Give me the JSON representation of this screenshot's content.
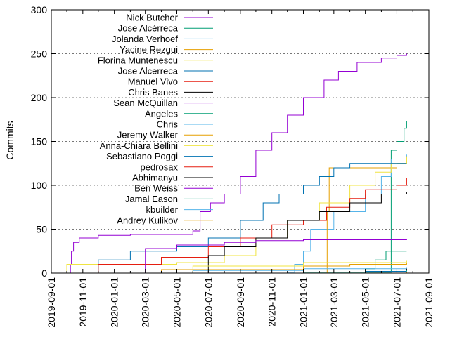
{
  "chart_data": {
    "type": "line",
    "title": "",
    "xlabel": "",
    "ylabel": "Commits",
    "xlim": [
      "2019-09-01",
      "2021-09-01"
    ],
    "ylim": [
      0,
      300
    ],
    "xticks": [
      "2019-09-01",
      "2019-11-01",
      "2020-01-01",
      "2020-03-01",
      "2020-05-01",
      "2020-07-01",
      "2020-09-01",
      "2020-11-01",
      "2021-01-01",
      "2021-03-01",
      "2021-05-01",
      "2021-07-01",
      "2021-09-01"
    ],
    "yticks": [
      0,
      50,
      100,
      150,
      200,
      250,
      300
    ],
    "grid": true,
    "legend_position": "top-left",
    "series": [
      {
        "name": "Nick Butcher",
        "color": "#9400d3",
        "points": [
          [
            "2019-09-15",
            0
          ],
          [
            "2019-10-08",
            10
          ],
          [
            "2019-10-10",
            25
          ],
          [
            "2019-10-14",
            35
          ],
          [
            "2019-10-25",
            40
          ],
          [
            "2019-12-01",
            43
          ],
          [
            "2020-02-01",
            44
          ],
          [
            "2020-06-01",
            48
          ],
          [
            "2020-06-15",
            70
          ],
          [
            "2020-07-05",
            80
          ],
          [
            "2020-08-01",
            90
          ],
          [
            "2020-09-01",
            110
          ],
          [
            "2020-10-01",
            140
          ],
          [
            "2020-11-01",
            160
          ],
          [
            "2020-12-01",
            180
          ],
          [
            "2021-01-01",
            200
          ],
          [
            "2021-02-10",
            220
          ],
          [
            "2021-03-10",
            230
          ],
          [
            "2021-04-15",
            240
          ],
          [
            "2021-06-01",
            245
          ],
          [
            "2021-07-01",
            248
          ],
          [
            "2021-07-20",
            250
          ]
        ]
      },
      {
        "name": "Jose Alcérreca",
        "color": "#009e73",
        "points": [
          [
            "2020-01-01",
            0
          ],
          [
            "2021-01-01",
            1
          ],
          [
            "2021-06-20",
            140
          ],
          [
            "2021-07-01",
            150
          ],
          [
            "2021-07-15",
            165
          ],
          [
            "2021-07-20",
            173
          ]
        ]
      },
      {
        "name": "Jolanda Verhoef",
        "color": "#56b4e9",
        "points": [
          [
            "2020-09-01",
            0
          ],
          [
            "2020-12-01",
            1
          ],
          [
            "2020-12-15",
            10
          ],
          [
            "2021-01-01",
            25
          ],
          [
            "2021-01-15",
            50
          ],
          [
            "2021-03-01",
            70
          ],
          [
            "2021-05-01",
            90
          ],
          [
            "2021-06-01",
            110
          ],
          [
            "2021-06-20",
            130
          ],
          [
            "2021-07-20",
            135
          ]
        ]
      },
      {
        "name": "Yacine Rezgui",
        "color": "#e69f00",
        "points": [
          [
            "2020-06-01",
            0
          ],
          [
            "2021-02-15",
            0
          ],
          [
            "2021-02-16",
            70
          ],
          [
            "2021-02-20",
            120
          ],
          [
            "2021-05-01",
            120
          ],
          [
            "2021-07-01",
            125
          ],
          [
            "2021-07-20",
            133
          ]
        ]
      },
      {
        "name": "Florina Muntenescu",
        "color": "#f0e442",
        "points": [
          [
            "2019-09-20",
            0
          ],
          [
            "2019-10-01",
            10
          ],
          [
            "2020-05-01",
            12
          ],
          [
            "2020-08-01",
            20
          ],
          [
            "2020-10-01",
            40
          ],
          [
            "2020-12-01",
            60
          ],
          [
            "2021-02-01",
            80
          ],
          [
            "2021-04-01",
            100
          ],
          [
            "2021-05-20",
            115
          ],
          [
            "2021-06-20",
            125
          ],
          [
            "2021-07-20",
            133
          ]
        ]
      },
      {
        "name": "Jose Alcerreca",
        "color": "#0072b2",
        "points": [
          [
            "2019-11-01",
            0
          ],
          [
            "2019-12-01",
            15
          ],
          [
            "2020-02-01",
            25
          ],
          [
            "2020-05-01",
            30
          ],
          [
            "2020-07-01",
            40
          ],
          [
            "2020-09-01",
            60
          ],
          [
            "2020-10-15",
            80
          ],
          [
            "2020-11-15",
            90
          ],
          [
            "2021-01-01",
            100
          ],
          [
            "2021-02-01",
            110
          ],
          [
            "2021-03-01",
            120
          ],
          [
            "2021-04-01",
            125
          ],
          [
            "2021-07-20",
            125
          ]
        ]
      },
      {
        "name": "Manuel Vivo",
        "color": "#e51e10",
        "points": [
          [
            "2019-09-01",
            0
          ],
          [
            "2019-12-01",
            10
          ],
          [
            "2020-04-01",
            18
          ],
          [
            "2020-07-01",
            30
          ],
          [
            "2020-09-01",
            40
          ],
          [
            "2020-11-01",
            55
          ],
          [
            "2021-01-01",
            60
          ],
          [
            "2021-02-15",
            75
          ],
          [
            "2021-04-01",
            85
          ],
          [
            "2021-05-01",
            95
          ],
          [
            "2021-07-01",
            100
          ],
          [
            "2021-07-20",
            108
          ]
        ]
      },
      {
        "name": "Chris Banes",
        "color": "#000000",
        "points": [
          [
            "2020-06-15",
            0
          ],
          [
            "2020-07-01",
            20
          ],
          [
            "2020-08-01",
            30
          ],
          [
            "2020-10-01",
            40
          ],
          [
            "2020-12-01",
            60
          ],
          [
            "2021-02-01",
            70
          ],
          [
            "2021-04-01",
            80
          ],
          [
            "2021-06-01",
            90
          ],
          [
            "2021-07-20",
            92
          ]
        ]
      },
      {
        "name": "Sean McQuillan",
        "color": "#9400d3",
        "points": [
          [
            "2020-02-01",
            0
          ],
          [
            "2020-03-01",
            28
          ],
          [
            "2020-05-01",
            32
          ],
          [
            "2020-08-01",
            35
          ],
          [
            "2020-10-01",
            37
          ],
          [
            "2021-01-01",
            38
          ],
          [
            "2021-07-20",
            39
          ]
        ]
      },
      {
        "name": "Angeles",
        "color": "#009e73",
        "points": [
          [
            "2021-03-01",
            0
          ],
          [
            "2021-05-01",
            5
          ],
          [
            "2021-05-20",
            15
          ],
          [
            "2021-06-10",
            25
          ],
          [
            "2021-07-20",
            25
          ]
        ]
      },
      {
        "name": "Chris",
        "color": "#56b4e9",
        "points": [
          [
            "2019-10-01",
            0
          ],
          [
            "2020-06-01",
            3
          ],
          [
            "2021-01-01",
            5
          ],
          [
            "2021-07-20",
            6
          ]
        ]
      },
      {
        "name": "Jeremy Walker",
        "color": "#e69f00",
        "points": [
          [
            "2019-10-01",
            0
          ],
          [
            "2020-04-01",
            4
          ],
          [
            "2021-01-01",
            8
          ],
          [
            "2021-04-01",
            10
          ],
          [
            "2021-07-20",
            12
          ]
        ]
      },
      {
        "name": "Anna-Chiara Bellini",
        "color": "#f0e442",
        "points": [
          [
            "2020-01-01",
            0
          ],
          [
            "2020-06-01",
            8
          ],
          [
            "2021-01-01",
            12
          ],
          [
            "2021-07-20",
            14
          ]
        ]
      },
      {
        "name": "Sebastiano Poggi",
        "color": "#0072b2",
        "points": [
          [
            "2020-03-01",
            0
          ],
          [
            "2021-05-01",
            2
          ],
          [
            "2021-07-20",
            4
          ]
        ]
      },
      {
        "name": "pedrosax",
        "color": "#e51e10",
        "points": [
          [
            "2020-11-01",
            0
          ],
          [
            "2021-07-20",
            2
          ]
        ]
      },
      {
        "name": "Abhimanyu",
        "color": "#000000",
        "points": [
          [
            "2021-01-01",
            0
          ],
          [
            "2021-07-20",
            5
          ]
        ]
      },
      {
        "name": "Ben Weiss",
        "color": "#9400d3",
        "points": [
          [
            "2021-01-01",
            0
          ],
          [
            "2021-07-20",
            3
          ]
        ]
      },
      {
        "name": "Jamal Eason",
        "color": "#009e73",
        "points": [
          [
            "2021-01-01",
            0
          ],
          [
            "2021-07-20",
            4
          ]
        ]
      },
      {
        "name": "kbuilder",
        "color": "#56b4e9",
        "points": [
          [
            "2021-03-01",
            0
          ],
          [
            "2021-07-20",
            2
          ]
        ]
      },
      {
        "name": "Andrey Kulikov",
        "color": "#e69f00",
        "points": [
          [
            "2021-02-01",
            0
          ],
          [
            "2021-07-20",
            1
          ]
        ]
      }
    ]
  }
}
